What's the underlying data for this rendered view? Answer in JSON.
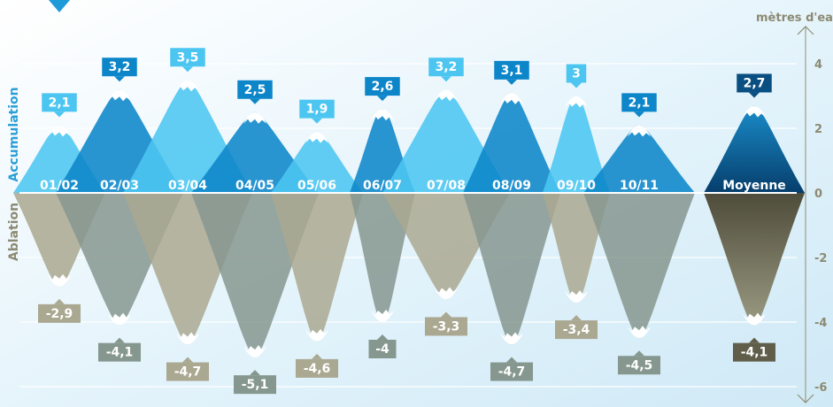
{
  "chart_data": {
    "type": "area",
    "title": "",
    "ylabel": "mètres d'eau",
    "ylim": [
      -6,
      4.5
    ],
    "grid": true,
    "categories": [
      "01/02",
      "02/03",
      "03/04",
      "04/05",
      "05/06",
      "06/07",
      "07/08",
      "08/09",
      "09/10",
      "10/11",
      "Moyenne"
    ],
    "yticks": [
      -6,
      -4,
      -2,
      0,
      2,
      4
    ],
    "ytick_labels": [
      "-6",
      "-4",
      "-2",
      "0",
      "2",
      "4"
    ],
    "series": [
      {
        "name": "Accumulation",
        "values": [
          2.1,
          3.2,
          3.5,
          2.5,
          1.9,
          2.6,
          3.2,
          3.1,
          3.0,
          2.1,
          2.7
        ],
        "labels": [
          "2,1",
          "3,2",
          "3,5",
          "2,5",
          "1,9",
          "2,6",
          "3,2",
          "3,1",
          "3",
          "2,1",
          "2,7"
        ]
      },
      {
        "name": "Ablation",
        "values": [
          -2.9,
          -4.1,
          -4.7,
          -5.1,
          -4.6,
          -4.0,
          -3.3,
          -4.7,
          -3.4,
          -4.5,
          -4.1
        ],
        "labels": [
          "-2,9",
          "-4,1",
          "-4,7",
          "-5,1",
          "-4,6",
          "-4",
          "-3,3",
          "-4,7",
          "-3,4",
          "-4,5",
          "-4,1"
        ]
      }
    ],
    "colors": {
      "accumulation_light": "#4cc6f1",
      "accumulation_dark": "#0c86c9",
      "accumulation_mean": "#0a4f82",
      "ablation_light": "#aaa891",
      "ablation_dark": "#86978f",
      "ablation_mean": "#605e4a",
      "label_text": "#ffffff",
      "axis_label_accum": "#2b9fd6",
      "axis_label_ablation": "#8c8a72",
      "background_top": "#d2ecf8"
    }
  }
}
